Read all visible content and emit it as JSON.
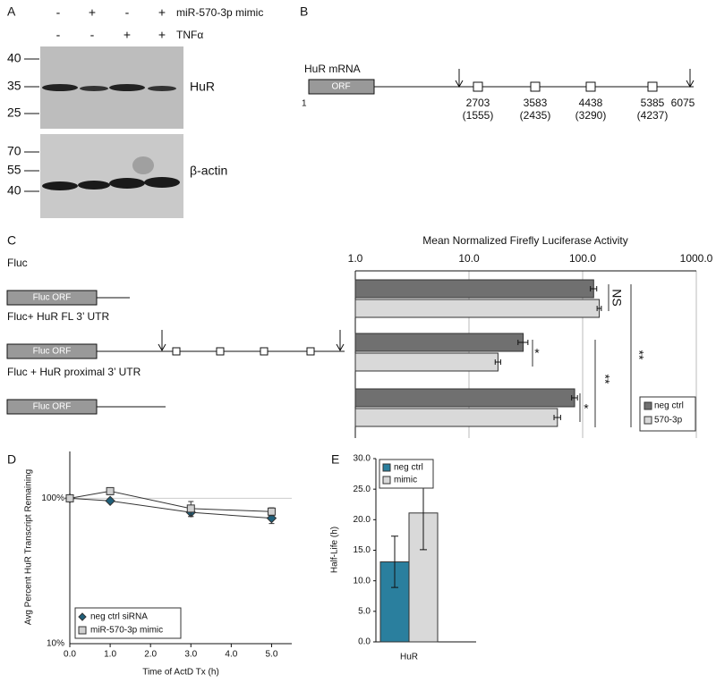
{
  "panels": {
    "A": {
      "label": "A",
      "rows": [
        {
          "signs": [
            "-",
            "+",
            "-",
            "+"
          ],
          "label": "miR-570-3p mimic"
        },
        {
          "signs": [
            "-",
            "-",
            "+",
            "+"
          ],
          "label": "TNFα"
        }
      ],
      "blots": [
        {
          "label": "HuR",
          "markers": [
            "40",
            "35",
            "25"
          ]
        },
        {
          "label": "β-actin",
          "markers": [
            "70",
            "55",
            "40"
          ]
        }
      ]
    },
    "B": {
      "label": "B",
      "transcript": "HuR mRNA",
      "orf": "ORF",
      "start": "1",
      "end": "6075",
      "sites": [
        {
          "position": "2703",
          "relative": "(1555)"
        },
        {
          "position": "3583",
          "relative": "(2435)"
        },
        {
          "position": "4438",
          "relative": "(3290)"
        },
        {
          "position": "5385",
          "relative": "(4237)"
        }
      ]
    }
  },
  "chart_data": [
    {
      "type": "hbar",
      "panel_label": "C",
      "title": "Mean Normalized Firefly Luciferase Activity",
      "categories": [
        "Fluc",
        "Fluc+ HuR FL 3’ UTR",
        "Fluc + HuR proximal 3’ UTR"
      ],
      "construct_label": "Fluc ORF",
      "series": [
        {
          "name": "neg ctrl",
          "color": "#707070",
          "values": [
            125,
            30,
            85
          ],
          "errors": [
            8,
            3,
            5
          ]
        },
        {
          "name": "570-3p",
          "color": "#d9d9d9",
          "values": [
            140,
            18,
            60
          ],
          "errors": [
            6,
            1,
            4
          ]
        }
      ],
      "xscale": "log",
      "xlim": [
        1,
        1000
      ],
      "xticks": [
        {
          "value": 1,
          "label": "1.0"
        },
        {
          "value": 10,
          "label": "10.0"
        },
        {
          "value": 100,
          "label": "100.0"
        },
        {
          "value": 1000,
          "label": "1000.0"
        }
      ],
      "grid": true,
      "legend": "lower right",
      "annotations": [
        "NS",
        "*",
        "**",
        "*",
        "**"
      ]
    },
    {
      "type": "line",
      "panel_label": "D",
      "x": [
        0,
        1,
        3,
        5
      ],
      "series": [
        {
          "name": "neg ctrl siRNA",
          "color": "#1f5f7a",
          "marker": "diamond",
          "values": [
            100,
            96,
            80,
            73
          ],
          "errors": [
            3,
            3,
            5,
            6
          ]
        },
        {
          "name": "miR-570-3p mimic",
          "color": "#d0d0d0",
          "marker": "square",
          "values": [
            100,
            112,
            85,
            81
          ],
          "errors": [
            3,
            6,
            10,
            5
          ]
        }
      ],
      "xlabel": "Time of ActD Tx (h)",
      "ylabel": "Avg Percent HuR Transcript Remaining",
      "xlim": [
        0,
        5.5
      ],
      "xticks": [
        {
          "value": 0,
          "label": "0.0"
        },
        {
          "value": 1,
          "label": "1.0"
        },
        {
          "value": 2,
          "label": "2.0"
        },
        {
          "value": 3,
          "label": "3.0"
        },
        {
          "value": 4,
          "label": "4.0"
        },
        {
          "value": 5,
          "label": "5.0"
        }
      ],
      "yscale": "log",
      "ylim": [
        10,
        210
      ],
      "yticks": [
        {
          "value": 10,
          "label": "10%"
        },
        {
          "value": 100,
          "label": "100%"
        }
      ],
      "grid": true,
      "legend": "lower left"
    },
    {
      "type": "bar",
      "panel_label": "E",
      "categories": [
        "HuR"
      ],
      "series": [
        {
          "name": "neg ctrl",
          "color": "#2a7f9e",
          "values": [
            13.1
          ],
          "errors": [
            4.2
          ]
        },
        {
          "name": "mimic",
          "color": "#d9d9d9",
          "values": [
            21.1
          ],
          "errors": [
            6
          ]
        }
      ],
      "ylabel": "Half-Life (h)",
      "ylim": [
        0,
        30
      ],
      "yticks": [
        {
          "value": 0,
          "label": "0.0"
        },
        {
          "value": 5,
          "label": "5.0"
        },
        {
          "value": 10,
          "label": "10.0"
        },
        {
          "value": 15,
          "label": "15.0"
        },
        {
          "value": 20,
          "label": "20.0"
        },
        {
          "value": 25,
          "label": "25.0"
        },
        {
          "value": 30,
          "label": "30.0"
        }
      ],
      "legend": "upper left"
    }
  ]
}
